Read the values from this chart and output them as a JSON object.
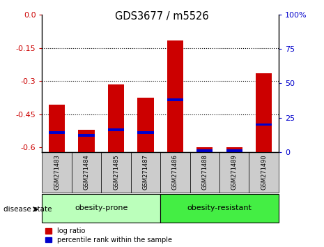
{
  "title": "GDS3677 / m5526",
  "samples": [
    "GSM271483",
    "GSM271484",
    "GSM271485",
    "GSM271487",
    "GSM271486",
    "GSM271488",
    "GSM271489",
    "GSM271490"
  ],
  "log_ratio": [
    -0.405,
    -0.52,
    -0.315,
    -0.375,
    -0.115,
    -0.598,
    -0.598,
    -0.265
  ],
  "percentile_rank": [
    14,
    12,
    16,
    14,
    38,
    1,
    1,
    20
  ],
  "ylim_left": [
    -0.62,
    0.0
  ],
  "ylim_right": [
    0,
    100
  ],
  "yticks_left": [
    0.0,
    -0.15,
    -0.3,
    -0.45,
    -0.6
  ],
  "yticks_right": [
    0,
    25,
    50,
    75,
    100
  ],
  "groups": [
    {
      "label": "obesity-prone",
      "indices": [
        0,
        1,
        2,
        3
      ],
      "color": "#bbffbb"
    },
    {
      "label": "obesity-resistant",
      "indices": [
        4,
        5,
        6,
        7
      ],
      "color": "#44ee44"
    }
  ],
  "bar_width": 0.55,
  "red_color": "#cc0000",
  "blue_color": "#0000cc",
  "tick_label_bg": "#cccccc",
  "ylabel_left_color": "#cc0000",
  "ylabel_right_color": "#0000cc",
  "disease_state_label": "disease state",
  "legend_items": [
    "log ratio",
    "percentile rank within the sample"
  ],
  "baseline": -0.62
}
